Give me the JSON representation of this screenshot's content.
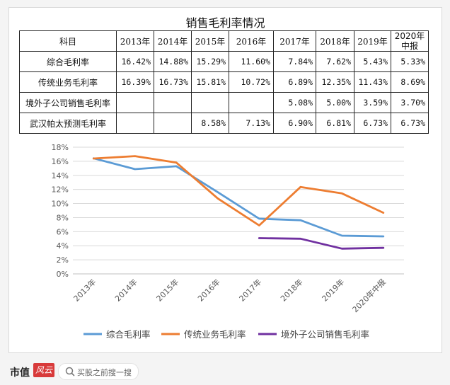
{
  "table": {
    "title": "销售毛利率情况",
    "header": [
      "科目",
      "2013年",
      "2014年",
      "2015年",
      "2016年",
      "2017年",
      "2018年",
      "2019年",
      "2020年中报"
    ],
    "rows": [
      {
        "name": "综合毛利率",
        "cells": [
          "16.42%",
          "14.88%",
          "15.29%",
          "11.60%",
          "7.84%",
          "7.62%",
          "5.43%",
          "5.33%"
        ]
      },
      {
        "name": "传统业务毛利率",
        "cells": [
          "16.39%",
          "16.73%",
          "15.81%",
          "10.72%",
          "6.89%",
          "12.35%",
          "11.43%",
          "8.69%"
        ]
      },
      {
        "name": "境外子公司销售毛利率",
        "cells": [
          "",
          "",
          "",
          "",
          "5.08%",
          "5.00%",
          "3.59%",
          "3.70%"
        ]
      },
      {
        "name": "武汉帕太预测毛利率",
        "cells": [
          "",
          "",
          "8.58%",
          "7.13%",
          "6.90%",
          "6.81%",
          "6.73%",
          "6.73%"
        ]
      }
    ]
  },
  "chart_data": {
    "type": "line",
    "categories": [
      "2013年",
      "2014年",
      "2015年",
      "2016年",
      "2017年",
      "2018年",
      "2019年",
      "2020年中报"
    ],
    "y_ticks": [
      "0%",
      "2%",
      "4%",
      "6%",
      "8%",
      "10%",
      "12%",
      "14%",
      "16%",
      "18%"
    ],
    "ylim": [
      0,
      18
    ],
    "grid": true,
    "legend_position": "bottom",
    "series": [
      {
        "name": "综合毛利率",
        "color": "#5b9bd5",
        "values": [
          16.42,
          14.88,
          15.29,
          11.6,
          7.84,
          7.62,
          5.43,
          5.33
        ]
      },
      {
        "name": "传统业务毛利率",
        "color": "#ed7d31",
        "values": [
          16.39,
          16.73,
          15.81,
          10.72,
          6.89,
          12.35,
          11.43,
          8.69
        ]
      },
      {
        "name": "境外子公司销售毛利率",
        "color": "#7030a0",
        "values": [
          null,
          null,
          null,
          null,
          5.08,
          5.0,
          3.59,
          3.7
        ]
      }
    ]
  },
  "footer": {
    "brand": "市值",
    "brand_mark": "风云",
    "search_placeholder": "买股之前搜一搜",
    "search_icon": "search-icon"
  }
}
